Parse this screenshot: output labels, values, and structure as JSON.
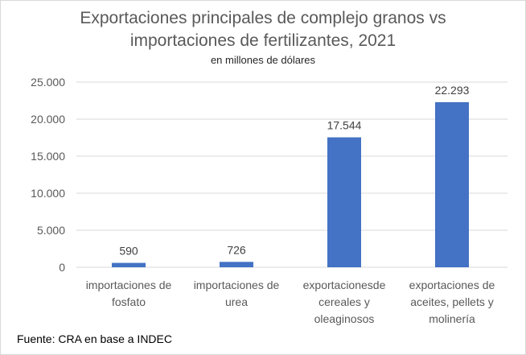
{
  "chart_data": {
    "type": "bar",
    "title_line1": "Exportaciones principales de complejo granos vs",
    "title_line2": "importaciones de fertilizantes, 2021",
    "subtitle": "en millones de dólares",
    "categories": [
      [
        "importaciones de",
        "fosfato"
      ],
      [
        "importaciones de",
        "urea"
      ],
      [
        "exportacionesde",
        "cereales y",
        "oleaginosos"
      ],
      [
        "exportaciones de",
        "aceites, pellets y",
        "molinería"
      ]
    ],
    "values": [
      590,
      726,
      17544,
      22293
    ],
    "data_labels": [
      "590",
      "726",
      "17.544",
      "22.293"
    ],
    "yticks": [
      0,
      5000,
      10000,
      15000,
      20000,
      25000
    ],
    "ytick_labels": [
      "0",
      "5.000",
      "10.000",
      "15.000",
      "20.000",
      "25.000"
    ],
    "ylim": [
      0,
      25000
    ],
    "grid": true,
    "bar_color": "#4472C4",
    "xlabel": "",
    "ylabel": ""
  },
  "source": "Fuente: CRA en base a INDEC"
}
